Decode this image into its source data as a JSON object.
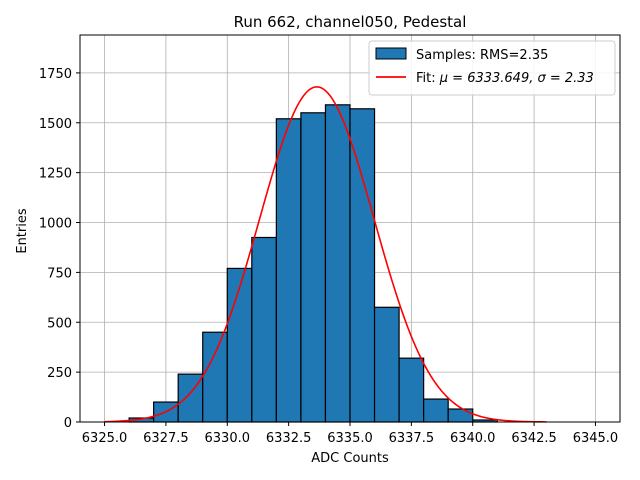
{
  "chart_data": {
    "type": "bar",
    "title": "Run 662, channel050, Pedestal",
    "xlabel": "ADC Counts",
    "ylabel": "Entries",
    "xlim": [
      6324.0,
      6346.0
    ],
    "ylim": [
      0,
      1940
    ],
    "grid": true,
    "legend_position": "top-right",
    "x_ticks": [
      6325.0,
      6327.5,
      6330.0,
      6332.5,
      6335.0,
      6337.5,
      6340.0,
      6342.5,
      6345.0
    ],
    "x_tick_labels": [
      "6325.0",
      "6327.5",
      "6330.0",
      "6332.5",
      "6335.0",
      "6337.5",
      "6340.0",
      "6342.5",
      "6345.0"
    ],
    "y_ticks": [
      0,
      250,
      500,
      750,
      1000,
      1250,
      1500,
      1750
    ],
    "y_tick_labels": [
      "0",
      "250",
      "500",
      "750",
      "1000",
      "1250",
      "1500",
      "1750"
    ],
    "bins": {
      "edges": [
        6326.0,
        6327.0,
        6328.0,
        6329.0,
        6330.0,
        6331.0,
        6332.0,
        6333.0,
        6334.0,
        6335.0,
        6336.0,
        6337.0,
        6338.0,
        6339.0,
        6340.0,
        6341.0
      ],
      "counts": [
        20,
        100,
        240,
        450,
        770,
        925,
        1520,
        1550,
        1590,
        1570,
        575,
        320,
        115,
        65,
        10
      ]
    },
    "series": [
      {
        "name": "Samples: RMS=2.35",
        "kind": "histogram",
        "color": "#1f77b4",
        "edgecolor": "#000000"
      },
      {
        "name_prefix": "Fit: ",
        "name_math": "μ = 6333.649, σ = 2.33",
        "kind": "gaussian-fit",
        "color": "#ff0000",
        "mu": 6333.649,
        "sigma": 2.33,
        "amplitude": 1680,
        "x_range": [
          6325.0,
          6343.0
        ]
      }
    ],
    "grid_color": "#b0b0b0"
  }
}
